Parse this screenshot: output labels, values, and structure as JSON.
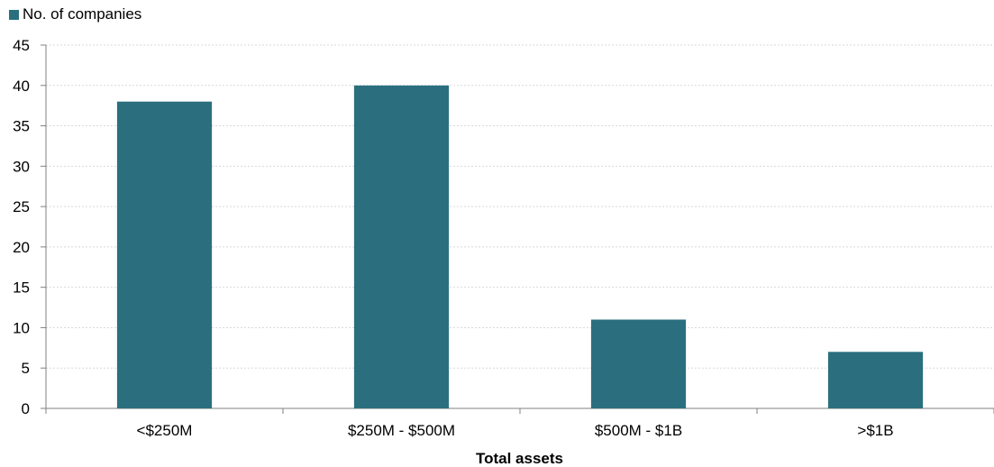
{
  "chart_data": {
    "type": "bar",
    "categories": [
      "<$250M",
      "$250M - $500M",
      "$500M - $1B",
      ">$1B"
    ],
    "series": [
      {
        "name": "No. of companies",
        "values": [
          38,
          40,
          11,
          7
        ],
        "color": "#2b6f7f"
      }
    ],
    "xlabel": "Total assets",
    "ylabel": "",
    "ylim": [
      0,
      45
    ],
    "yticks": [
      0,
      5,
      10,
      15,
      20,
      25,
      30,
      35,
      40,
      45
    ],
    "grid": true,
    "legend_position": "top-left"
  }
}
